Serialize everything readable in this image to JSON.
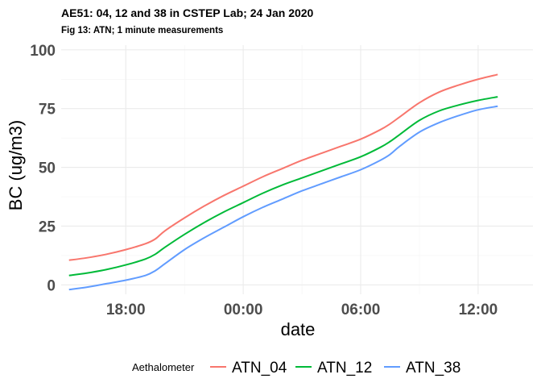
{
  "chart_data": {
    "type": "line",
    "title": "AE51: 04, 12 and 38 in CSTEP Lab; 24 Jan 2020",
    "subtitle": "Fig 13: ATN; 1 minute measurements",
    "xlabel": "date",
    "ylabel": "BC (ug/m3)",
    "x_unit": "hour",
    "x_ticks": [
      {
        "value": -6,
        "label": "18:00"
      },
      {
        "value": 0,
        "label": "00:00"
      },
      {
        "value": 6,
        "label": "06:00"
      },
      {
        "value": 12,
        "label": "12:00"
      }
    ],
    "y_ticks": [
      0,
      25,
      50,
      75,
      100
    ],
    "xlim": [
      -9.3,
      14.8
    ],
    "ylim": [
      -4,
      102
    ],
    "grid": true,
    "legend": {
      "title": "Aethalometer",
      "position": "bottom"
    },
    "series": [
      {
        "name": "ATN_04",
        "color": "#F8766D",
        "x": [
          -8.9,
          -8,
          -7,
          -6,
          -5,
          -4.5,
          -4,
          -3,
          -2,
          -1,
          0,
          1,
          2,
          3,
          4,
          5,
          6,
          7,
          7.5,
          8,
          9,
          10,
          11,
          12,
          13
        ],
        "y": [
          10.5,
          11.5,
          13,
          15,
          17.5,
          19.5,
          23,
          28.5,
          33.5,
          38,
          42,
          46,
          49.5,
          53,
          56,
          59,
          62,
          66,
          68.5,
          71.5,
          77.5,
          82,
          85,
          87.5,
          89.5
        ]
      },
      {
        "name": "ATN_12",
        "color": "#00BA38",
        "x": [
          -8.9,
          -8,
          -7,
          -6,
          -5,
          -4.5,
          -4,
          -3,
          -2,
          -1,
          0,
          1,
          2,
          3,
          4,
          5,
          6,
          7,
          7.5,
          8,
          9,
          10,
          11,
          12,
          13
        ],
        "y": [
          4,
          5,
          6.5,
          8.5,
          11,
          13,
          16,
          21.5,
          26.5,
          31,
          35,
          39,
          42.5,
          45.5,
          48.5,
          51.5,
          54.5,
          58.5,
          61,
          64,
          70,
          74,
          76.5,
          78.5,
          80
        ]
      },
      {
        "name": "ATN_38",
        "color": "#619CFF",
        "x": [
          -8.9,
          -8,
          -7,
          -6,
          -5,
          -4.5,
          -4,
          -3,
          -2,
          -1,
          0,
          1,
          2,
          3,
          4,
          5,
          6,
          7,
          7.5,
          8,
          9,
          10,
          11,
          12,
          13
        ],
        "y": [
          -2,
          -1,
          0.5,
          2,
          4,
          6,
          9,
          15,
          20,
          24.5,
          29,
          33,
          36.5,
          40,
          43,
          46,
          49,
          53,
          55.5,
          59,
          65,
          69,
          72,
          74.5,
          76
        ]
      }
    ]
  }
}
